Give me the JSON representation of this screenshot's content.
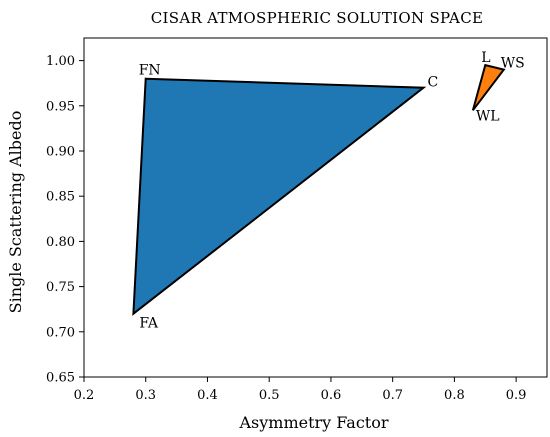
{
  "chart_data": {
    "type": "scatter",
    "title": "CISAR ATMOSPHERIC SOLUTION SPACE",
    "xlabel": "Asymmetry Factor",
    "ylabel": "Single Scattering Albedo",
    "xlim": [
      0.2,
      0.95
    ],
    "ylim": [
      0.65,
      1.025
    ],
    "grid": false,
    "x_ticks": [
      "0.2",
      "0.3",
      "0.4",
      "0.5",
      "0.6",
      "0.7",
      "0.8",
      "0.9"
    ],
    "y_ticks": [
      "0.65",
      "0.70",
      "0.75",
      "0.80",
      "0.85",
      "0.90",
      "0.95",
      "1.00"
    ],
    "polygons": [
      {
        "color": "#1f77b4",
        "points": [
          {
            "label": "FN",
            "x": 0.3,
            "y": 0.98
          },
          {
            "label": "C",
            "x": 0.75,
            "y": 0.97
          },
          {
            "label": "FA",
            "x": 0.28,
            "y": 0.72
          }
        ]
      },
      {
        "color": "#ff7f0e",
        "points": [
          {
            "label": "L",
            "x": 0.85,
            "y": 0.995
          },
          {
            "label": "WS",
            "x": 0.88,
            "y": 0.99
          },
          {
            "label": "WL",
            "x": 0.83,
            "y": 0.945
          }
        ]
      }
    ]
  }
}
